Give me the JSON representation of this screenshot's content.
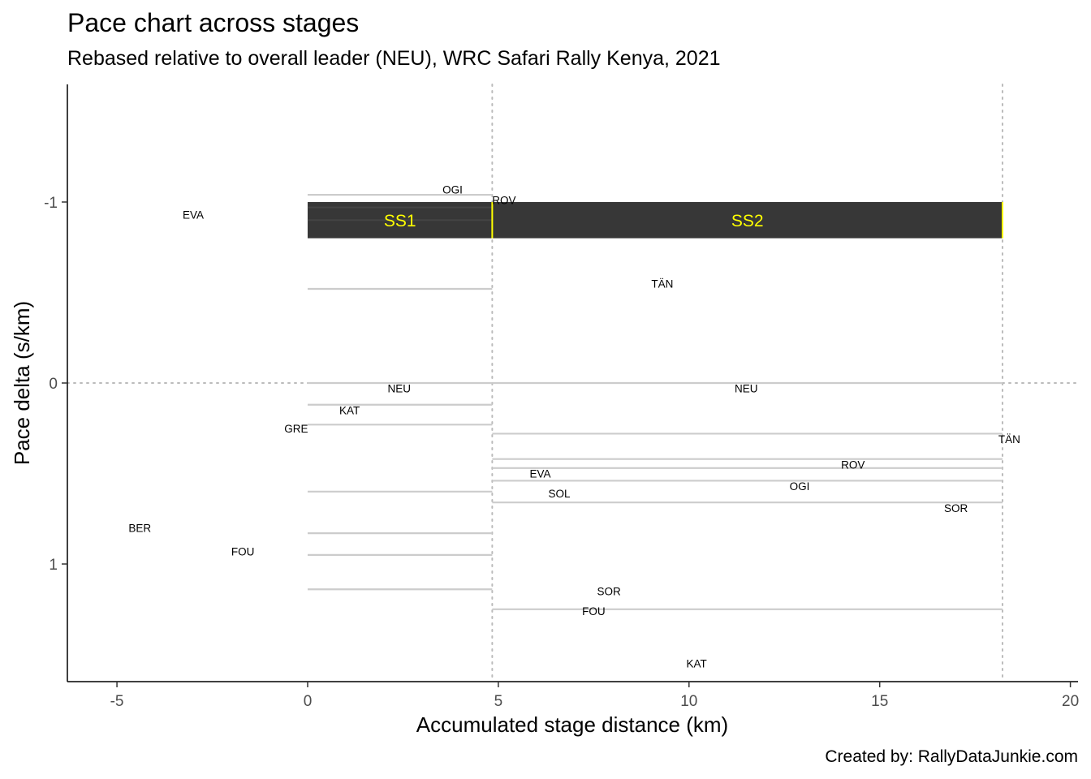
{
  "title": "Pace chart across stages",
  "subtitle": "Rebased relative to overall leader (NEU), WRC Safari Rally Kenya, 2021",
  "caption": "Created by: RallyDataJunkie.com",
  "colors": {
    "background": "#ffffff",
    "segment": "#cccccc",
    "stage_bar": "#333333",
    "stage_label": "#ffff00",
    "stage_divider": "#ffff00",
    "guide": "#bbbbbb",
    "axis": "#000000",
    "tick_label": "#4d4d4d"
  },
  "chart_data": {
    "type": "segment",
    "title": "Pace chart across stages",
    "subtitle": "Rebased relative to overall leader (NEU), WRC Safari Rally Kenya, 2021",
    "xlabel": "Accumulated stage distance (km)",
    "ylabel": "Pace delta (s/km)",
    "xlim": [
      -6.3,
      20.2
    ],
    "ylim": [
      1.65,
      -1.65
    ],
    "y_reversed": true,
    "x_ticks": [
      -5,
      0,
      5,
      10,
      15,
      20
    ],
    "x_tick_labels": [
      "-5",
      "0",
      "5",
      "10",
      "15",
      "20"
    ],
    "y_ticks": [
      -1,
      0,
      1
    ],
    "y_tick_labels": [
      "-1",
      "0",
      "1"
    ],
    "grid": false,
    "reference_lines": {
      "vertical": [
        4.84,
        18.22
      ],
      "horizontal": [
        0
      ]
    },
    "stages": [
      {
        "name": "SS1",
        "start": 0,
        "end": 4.84
      },
      {
        "name": "SS2",
        "start": 4.84,
        "end": 18.22
      }
    ],
    "stage_band_y": [
      -1.0,
      -0.8
    ],
    "segments": [
      {
        "stage": "SS1",
        "x_start": 0,
        "x_end": 4.84,
        "pace": -1.04
      },
      {
        "stage": "SS1",
        "x_start": 0,
        "x_end": 4.84,
        "pace": -0.97
      },
      {
        "stage": "SS1",
        "x_start": 0,
        "x_end": 4.84,
        "pace": -0.9
      },
      {
        "stage": "SS1",
        "x_start": 0,
        "x_end": 4.84,
        "pace": -0.52
      },
      {
        "stage": "SS1",
        "x_start": 0,
        "x_end": 4.84,
        "pace": 0.0
      },
      {
        "stage": "SS1",
        "x_start": 0,
        "x_end": 4.84,
        "pace": 0.12
      },
      {
        "stage": "SS1",
        "x_start": 0,
        "x_end": 4.84,
        "pace": 0.23
      },
      {
        "stage": "SS1",
        "x_start": 0,
        "x_end": 4.84,
        "pace": 0.6
      },
      {
        "stage": "SS1",
        "x_start": 0,
        "x_end": 4.84,
        "pace": 0.83
      },
      {
        "stage": "SS1",
        "x_start": 0,
        "x_end": 4.84,
        "pace": 0.95
      },
      {
        "stage": "SS1",
        "x_start": 0,
        "x_end": 4.84,
        "pace": 1.14
      },
      {
        "stage": "SS2",
        "x_start": 4.84,
        "x_end": 18.22,
        "pace": 0.0
      },
      {
        "stage": "SS2",
        "x_start": 4.84,
        "x_end": 18.22,
        "pace": 0.28
      },
      {
        "stage": "SS2",
        "x_start": 4.84,
        "x_end": 18.22,
        "pace": 0.42
      },
      {
        "stage": "SS2",
        "x_start": 4.84,
        "x_end": 18.22,
        "pace": 0.47
      },
      {
        "stage": "SS2",
        "x_start": 4.84,
        "x_end": 18.22,
        "pace": 0.54
      },
      {
        "stage": "SS2",
        "x_start": 4.84,
        "x_end": 18.22,
        "pace": 0.66
      },
      {
        "stage": "SS2",
        "x_start": 4.84,
        "x_end": 18.22,
        "pace": 1.25
      }
    ],
    "labels": [
      {
        "text": "OGI",
        "x": 3.8,
        "y": -1.07
      },
      {
        "text": "ROV",
        "x": 5.15,
        "y": -1.01
      },
      {
        "text": "EVA",
        "x": -3.0,
        "y": -0.93
      },
      {
        "text": "TÄN",
        "x": 9.3,
        "y": -0.55
      },
      {
        "text": "NEU",
        "x": 2.4,
        "y": 0.03
      },
      {
        "text": "NEU",
        "x": 11.5,
        "y": 0.03
      },
      {
        "text": "KAT",
        "x": 1.1,
        "y": 0.15
      },
      {
        "text": "GRE",
        "x": -0.3,
        "y": 0.25
      },
      {
        "text": "TÄN",
        "x": 18.4,
        "y": 0.31
      },
      {
        "text": "ROV",
        "x": 14.3,
        "y": 0.45
      },
      {
        "text": "EVA",
        "x": 6.1,
        "y": 0.5
      },
      {
        "text": "OGI",
        "x": 12.9,
        "y": 0.57
      },
      {
        "text": "SOL",
        "x": 6.6,
        "y": 0.61
      },
      {
        "text": "SOR",
        "x": 17.0,
        "y": 0.69
      },
      {
        "text": "BER",
        "x": -4.4,
        "y": 0.8
      },
      {
        "text": "FOU",
        "x": -1.7,
        "y": 0.93
      },
      {
        "text": "SOR",
        "x": 7.9,
        "y": 1.15
      },
      {
        "text": "FOU",
        "x": 7.5,
        "y": 1.26
      },
      {
        "text": "KAT",
        "x": 10.2,
        "y": 1.55
      }
    ]
  }
}
